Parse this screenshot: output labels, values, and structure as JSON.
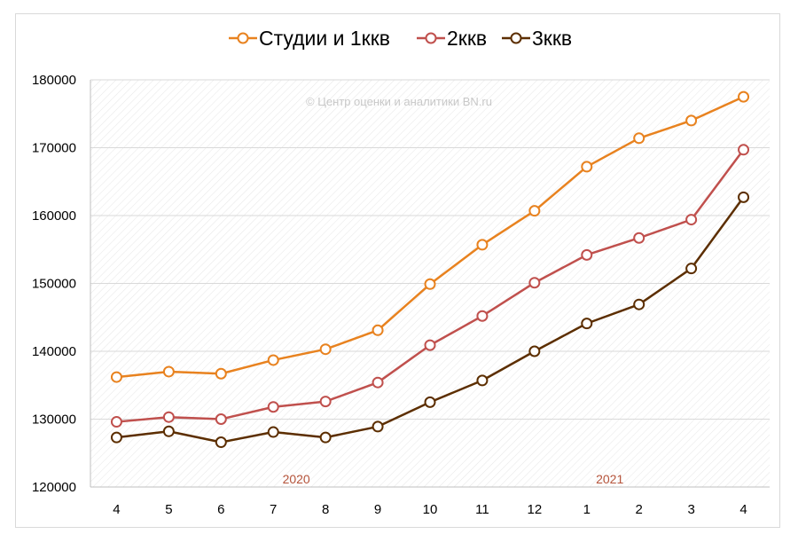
{
  "chart_data": {
    "type": "line",
    "title": "",
    "xlabel": "",
    "ylabel": "",
    "categories": [
      "4",
      "5",
      "6",
      "7",
      "8",
      "9",
      "10",
      "11",
      "12",
      "1",
      "2",
      "3",
      "4"
    ],
    "year_labels": [
      {
        "label": "2020",
        "category_index": 4
      },
      {
        "label": "2021",
        "category_index": 10
      }
    ],
    "ylim": [
      120000,
      180000
    ],
    "ytick_step": 10000,
    "yticks": [
      "120000",
      "130000",
      "140000",
      "150000",
      "160000",
      "170000",
      "180000"
    ],
    "grid": true,
    "legend_position": "top",
    "watermark": "© Центр оценки и аналитики BN.ru",
    "series": [
      {
        "name": "Студии и 1ккв",
        "color": "#e8821f",
        "values": [
          136200,
          137000,
          136700,
          138700,
          140300,
          143100,
          149900,
          155700,
          160700,
          167200,
          171400,
          174000,
          177500
        ]
      },
      {
        "name": "2ккв",
        "color": "#c0504d",
        "values": [
          129600,
          130300,
          130000,
          131800,
          132600,
          135400,
          140900,
          145200,
          150100,
          154200,
          156700,
          159400,
          169700
        ]
      },
      {
        "name": "3ккв",
        "color": "#5c2e00",
        "values": [
          127300,
          128200,
          126600,
          128100,
          127300,
          128900,
          132500,
          135700,
          140000,
          144100,
          146900,
          152200,
          162700
        ]
      }
    ]
  }
}
